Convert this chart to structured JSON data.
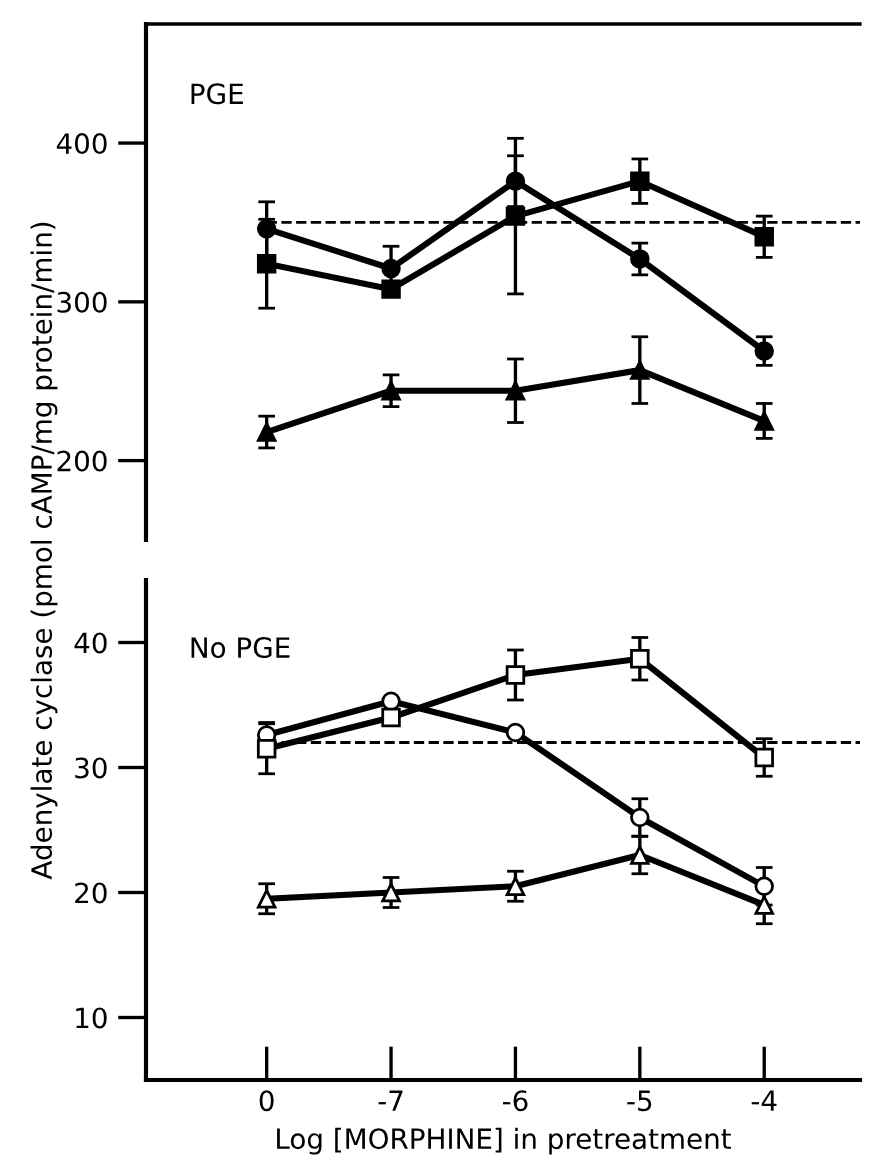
{
  "chart_data": [
    {
      "type": "line",
      "categories": [
        "0",
        "-7",
        "-6",
        "-5",
        "-4"
      ],
      "ylabel": "Adenylate cyclase (pmol cAMP/mg protein/min)",
      "annotations": [
        "PGE"
      ],
      "ylim": [
        150,
        475
      ],
      "yticks": [
        200,
        300,
        400
      ],
      "tick_labels": "y",
      "grid": false,
      "line_style": "solid",
      "ref_lines": [
        {
          "axis": "y",
          "value": 350,
          "line_style": "dashed",
          "color": "#000000"
        }
      ],
      "series": [
        {
          "color": "#000000",
          "marker": "circle",
          "values": [
            346,
            321,
            376,
            327,
            269
          ],
          "errors": [
            17,
            14,
            16,
            10,
            9
          ]
        },
        {
          "color": "#000000",
          "marker": "square",
          "values": [
            324,
            308,
            354,
            376,
            341
          ],
          "errors": [
            28,
            null,
            49,
            14,
            13
          ]
        },
        {
          "color": "#000000",
          "marker": "triangle",
          "values": [
            218,
            244,
            244,
            257,
            225
          ],
          "errors": [
            10,
            10,
            20,
            21,
            11
          ]
        }
      ]
    },
    {
      "type": "line",
      "categories": [
        "0",
        "-7",
        "-6",
        "-5",
        "-4"
      ],
      "xlabel": "Log [MORPHINE] in pretreatment",
      "annotations": [
        "No PGE"
      ],
      "ylim": [
        5,
        45
      ],
      "yticks": [
        10,
        20,
        30,
        40
      ],
      "grid": false,
      "line_style": "solid",
      "ref_lines": [
        {
          "axis": "y",
          "value": 32,
          "line_style": "dashed",
          "color": "#000000"
        }
      ],
      "series": [
        {
          "color": "#000000",
          "marker": "circle",
          "values": [
            32.6,
            35.3,
            32.8,
            26,
            20.5
          ],
          "errors": [
            1,
            null,
            null,
            1.5,
            1.5
          ]
        },
        {
          "color": "#000000",
          "marker": "square",
          "values": [
            31.5,
            34,
            37.4,
            38.7,
            30.8
          ],
          "errors": [
            2,
            null,
            2,
            1.7,
            1.5
          ]
        },
        {
          "color": "#000000",
          "marker": "triangle",
          "values": [
            19.5,
            20,
            20.5,
            23,
            19
          ],
          "errors": [
            1.2,
            1.2,
            1.2,
            1.5,
            1.5
          ]
        }
      ]
    }
  ]
}
